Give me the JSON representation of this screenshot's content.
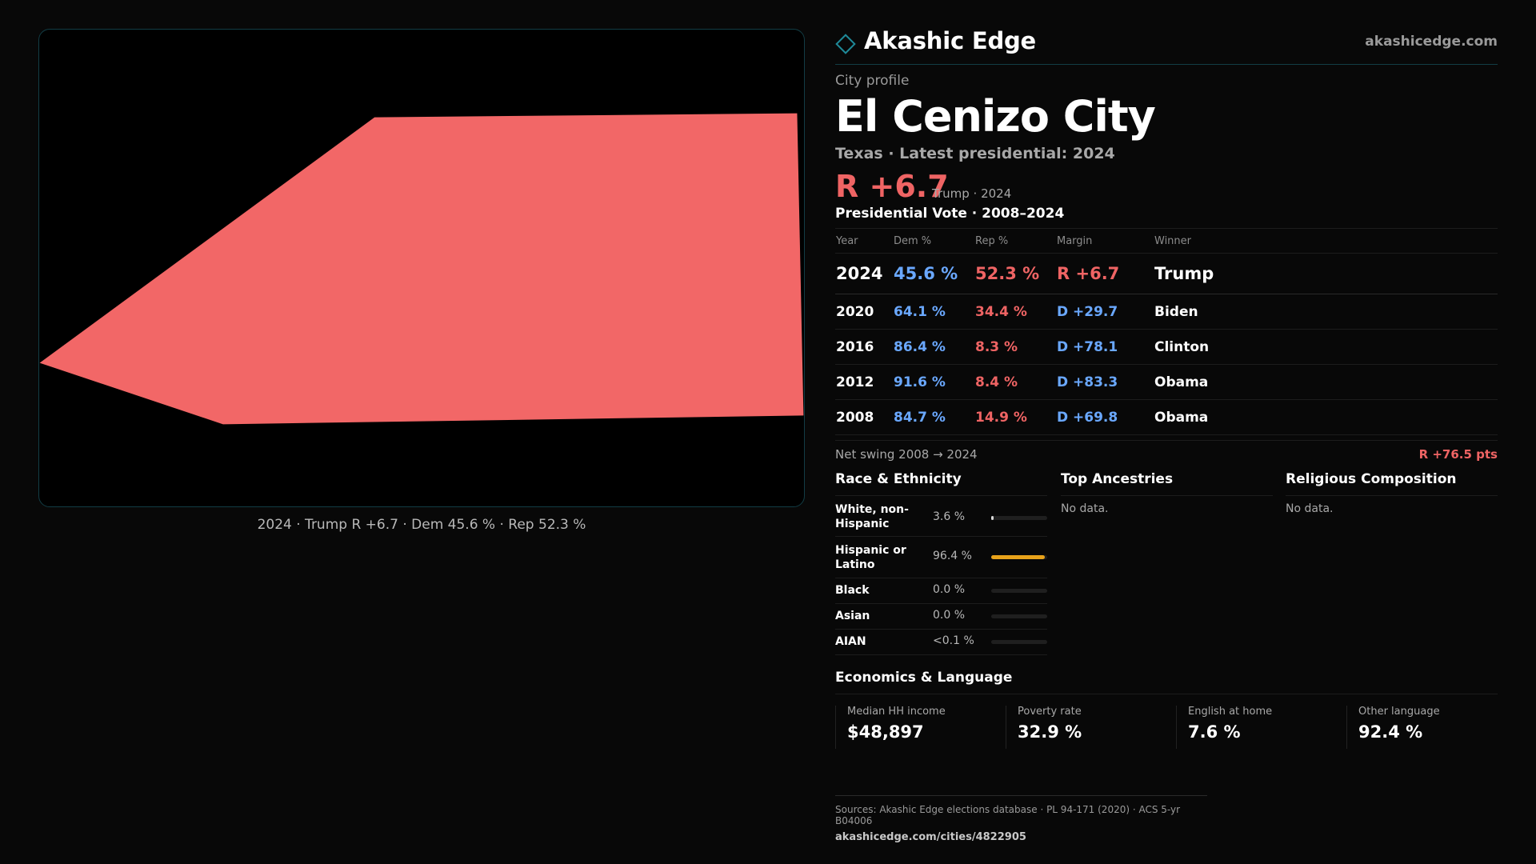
{
  "map": {
    "caption": "2024 · Trump R +6.7 · Dem 45.6 % · Rep 52.3 %",
    "fill_color": "#f26767",
    "border_color": "#123d45"
  },
  "brand": {
    "name": "Akashic Edge",
    "url": "akashicedge.com",
    "icon": "diamond-outline-icon"
  },
  "profile": {
    "kicker": "City profile",
    "title": "El Cenizo City",
    "subline": "Texas · Latest presidential: 2024",
    "margin": "R +6.7",
    "margin_note": "Trump · 2024"
  },
  "vote": {
    "title": "Presidential Vote · 2008–2024",
    "headers": {
      "year": "Year",
      "dem": "Dem %",
      "rep": "Rep %",
      "margin": "Margin",
      "winner": "Winner"
    },
    "rows": [
      {
        "year": "2024",
        "dem": "45.6 %",
        "rep": "52.3 %",
        "margin": "R +6.7",
        "winner": "Trump",
        "margin_party": "R"
      },
      {
        "year": "2020",
        "dem": "64.1 %",
        "rep": "34.4 %",
        "margin": "D +29.7",
        "winner": "Biden",
        "margin_party": "D"
      },
      {
        "year": "2016",
        "dem": "86.4 %",
        "rep": "8.3 %",
        "margin": "D +78.1",
        "winner": "Clinton",
        "margin_party": "D"
      },
      {
        "year": "2012",
        "dem": "91.6 %",
        "rep": "8.4 %",
        "margin": "D +83.3",
        "winner": "Obama",
        "margin_party": "D"
      },
      {
        "year": "2008",
        "dem": "84.7 %",
        "rep": "14.9 %",
        "margin": "D +69.8",
        "winner": "Obama",
        "margin_party": "D"
      }
    ],
    "swing_label": "Net swing 2008 → 2024",
    "swing_value": "R +76.5 pts"
  },
  "race": {
    "title": "Race & Ethnicity",
    "rows": [
      {
        "label": "White, non-Hispanic",
        "pct": "3.6 %",
        "fraction": 0.036
      },
      {
        "label": "Hispanic or Latino",
        "pct": "96.4 %",
        "fraction": 0.964
      },
      {
        "label": "Black",
        "pct": "0.0 %",
        "fraction": 0
      },
      {
        "label": "Asian",
        "pct": "0.0 %",
        "fraction": 0
      },
      {
        "label": "AIAN",
        "pct": "<0.1 %",
        "fraction": 0
      }
    ],
    "bar_color": "#e8a21a"
  },
  "ancestries": {
    "title": "Top Ancestries",
    "empty": "No data."
  },
  "religion": {
    "title": "Religious Composition",
    "empty": "No data."
  },
  "economics": {
    "title": "Economics & Language",
    "cells": [
      {
        "label": "Median HH income",
        "value": "$48,897"
      },
      {
        "label": "Poverty rate",
        "value": "32.9 %"
      },
      {
        "label": "English at home",
        "value": "7.6 %"
      },
      {
        "label": "Other language",
        "value": "92.4 %"
      }
    ]
  },
  "footer": {
    "sources": "Sources: Akashic Edge elections database · PL 94-171 (2020) · ACS 5-yr B04006",
    "url": "akashicedge.com/cities/4822905"
  },
  "colors": {
    "dem": "#6aa8ff",
    "rep": "#ef6464",
    "accent": "#1f8a99"
  }
}
